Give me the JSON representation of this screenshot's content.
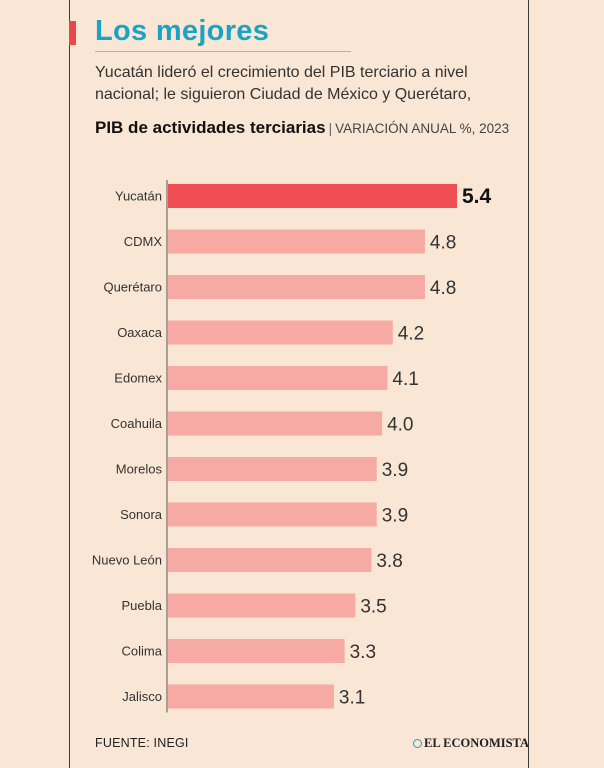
{
  "header": {
    "title": "Los mejores",
    "subtitle": "Yucatán lideró el crecimiento del PIB terciario a nivel nacional; le siguieron Ciudad de México y Querétaro,"
  },
  "chart_data": {
    "type": "bar",
    "orientation": "horizontal",
    "title": "PIB de actividades terciarias",
    "subtitle": "VARIACIÓN ANUAL %, 2023",
    "categories": [
      "Yucatán",
      "CDMX",
      "Querétaro",
      "Oaxaca",
      "Edomex",
      "Coahuila",
      "Morelos",
      "Sonora",
      "Nuevo León",
      "Puebla",
      "Colima",
      "Jalisco"
    ],
    "values": [
      5.4,
      4.8,
      4.8,
      4.2,
      4.1,
      4.0,
      3.9,
      3.9,
      3.8,
      3.5,
      3.3,
      3.1
    ],
    "value_labels": [
      "5.4",
      "4.8",
      "4.8",
      "4.2",
      "4.1",
      "4.0",
      "3.9",
      "3.9",
      "3.8",
      "3.5",
      "3.3",
      "3.1"
    ],
    "highlight_index": 0,
    "xlim": [
      0,
      5.4
    ],
    "grid": false,
    "colors": {
      "highlight": "#f04e52",
      "bar": "#f6aaa3"
    }
  },
  "footer": {
    "source": "FUENTE: INEGI",
    "brand": "EL ECONOMISTA"
  }
}
